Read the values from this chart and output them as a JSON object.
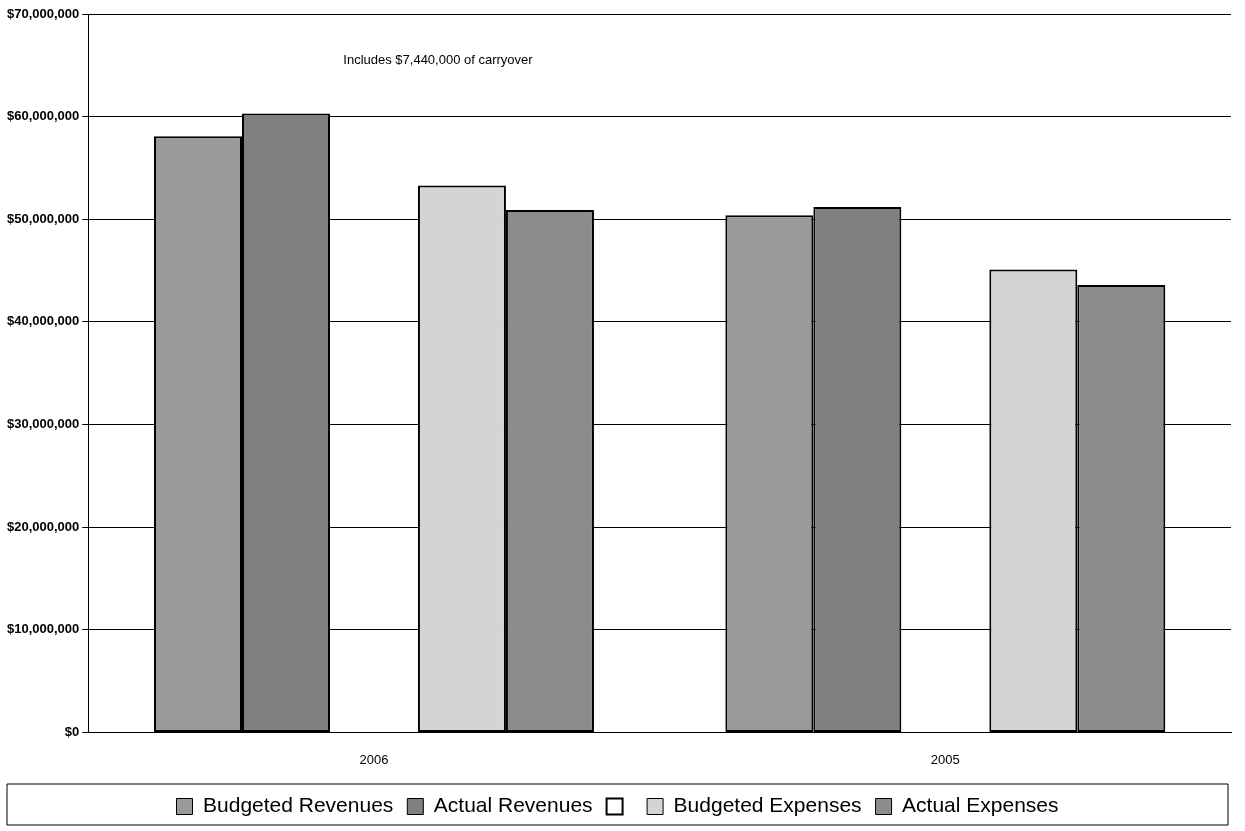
{
  "chart_data": {
    "type": "bar",
    "categories": [
      "2006",
      "2005"
    ],
    "series": [
      {
        "name": "Budgeted Revenues",
        "color": "#9a9a9a",
        "values": [
          58100000,
          50400000
        ]
      },
      {
        "name": "Actual Revenues",
        "color": "#808080",
        "values": [
          60300000,
          51200000
        ]
      },
      {
        "color": "#000000",
        "values": [
          null,
          null
        ]
      },
      {
        "name": "Budgeted Expenses",
        "color": "#d4d4d4",
        "values": [
          53300000,
          45100000
        ]
      },
      {
        "name": "Actual Expenses",
        "color": "#8c8c8c",
        "values": [
          50900000,
          43600000
        ]
      }
    ],
    "ylim": [
      0,
      70000000
    ],
    "yticks": [
      {
        "value": 0,
        "label": "$0"
      },
      {
        "value": 10000000,
        "label": "$10,000,000"
      },
      {
        "value": 20000000,
        "label": "$20,000,000"
      },
      {
        "value": 30000000,
        "label": "$30,000,000"
      },
      {
        "value": 40000000,
        "label": "$40,000,000"
      },
      {
        "value": 50000000,
        "label": "$50,000,000"
      },
      {
        "value": 60000000,
        "label": "$60,000,000"
      },
      {
        "value": 70000000,
        "label": "$70,000,000"
      }
    ],
    "grid": "y",
    "legend": "bottom",
    "annotations": [
      "Includes $7,440,000 of carryover"
    ]
  }
}
